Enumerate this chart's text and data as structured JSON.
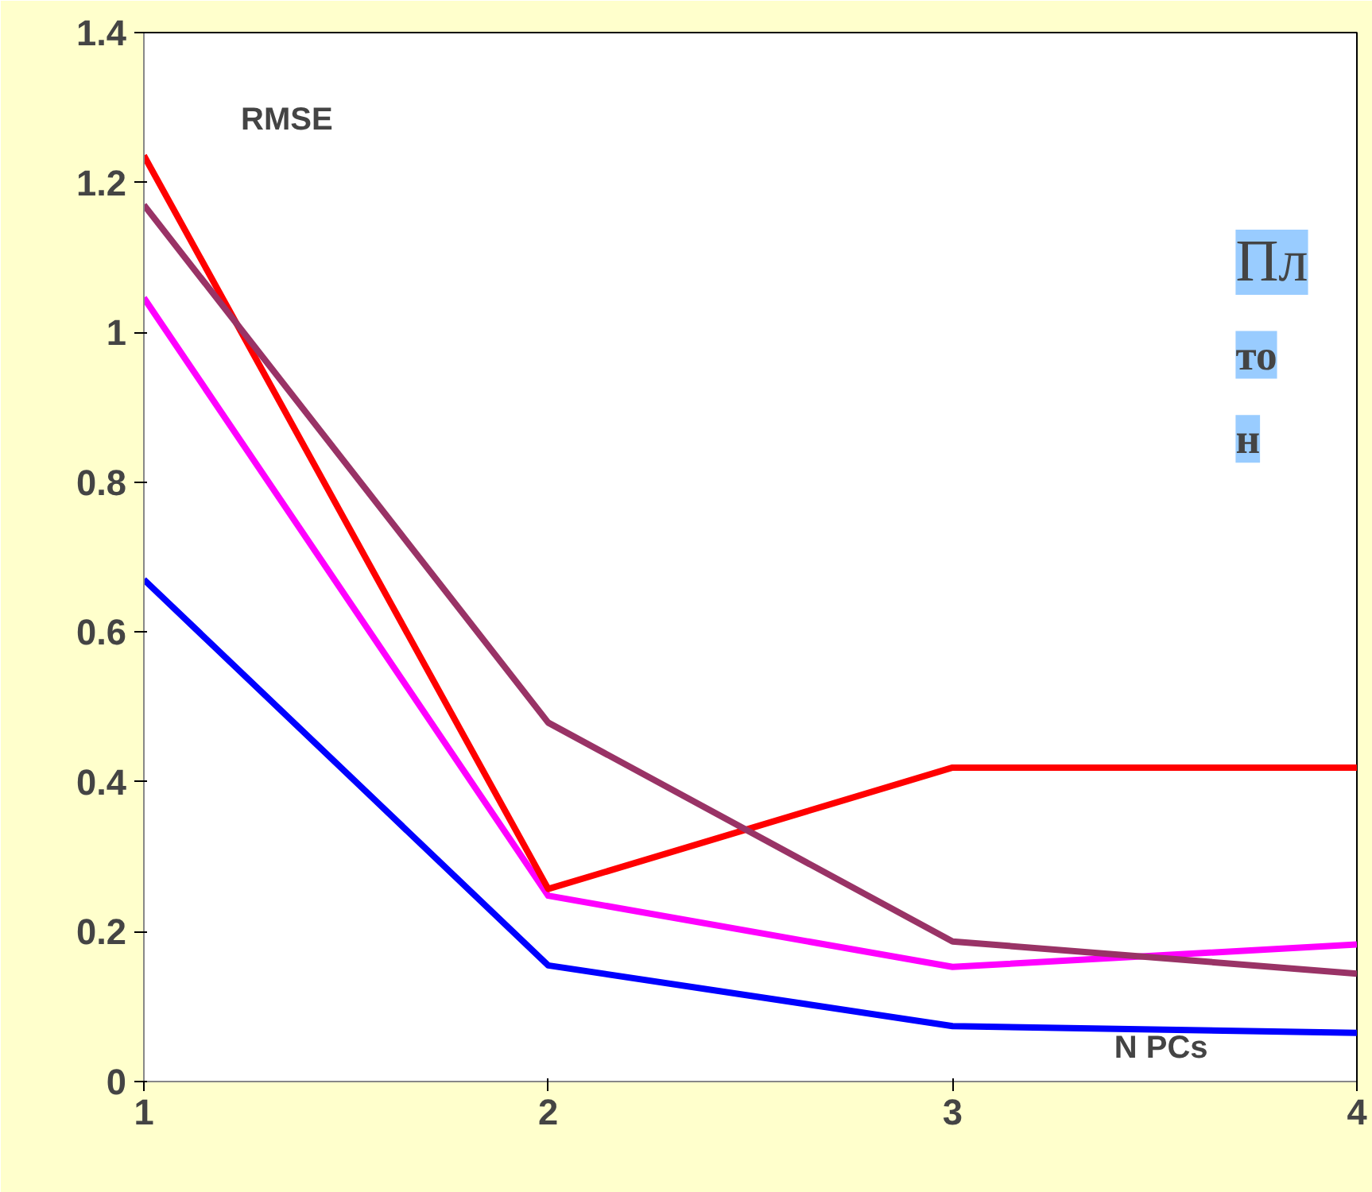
{
  "chart_data": {
    "type": "line",
    "xlabel": "N PCs",
    "ylabel": "RMSE",
    "x": [
      1,
      2,
      3,
      4
    ],
    "xlim": [
      1,
      4
    ],
    "xticks": [
      1,
      2,
      3,
      4
    ],
    "ylim": [
      0,
      1.4
    ],
    "yticks": [
      0,
      0.2,
      0.4,
      0.6,
      0.8,
      1,
      1.2,
      1.4
    ],
    "grid": false,
    "marker": "none",
    "line_style": "solid",
    "series": [
      {
        "color": "#0000ff",
        "values": [
          0.67,
          0.155,
          0.074,
          0.065
        ]
      },
      {
        "color": "#ff00ff",
        "values": [
          1.046,
          0.248,
          0.153,
          0.183
        ]
      },
      {
        "color": "#ff0000",
        "values": [
          1.236,
          0.257,
          0.419,
          0.419
        ]
      },
      {
        "color": "#993366",
        "values": [
          1.17,
          0.479,
          0.187,
          0.144
        ]
      }
    ],
    "annotations": [
      "Пл",
      "то",
      "н"
    ]
  }
}
